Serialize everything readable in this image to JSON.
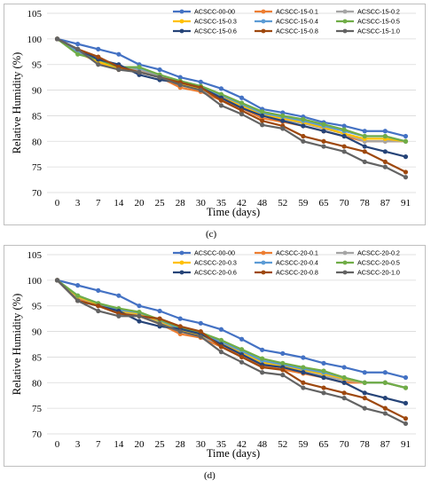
{
  "panels": [
    {
      "label": "(c)",
      "chart_data": {
        "type": "line",
        "title": "",
        "xlabel": "Time (days)",
        "ylabel": "Relative Humidity (%)",
        "categories": [
          "0",
          "3",
          "7",
          "14",
          "20",
          "25",
          "28",
          "30",
          "35",
          "42",
          "48",
          "52",
          "59",
          "65",
          "70",
          "78",
          "87",
          "91"
        ],
        "ylim": [
          70,
          105
        ],
        "yticks": [
          70,
          75,
          80,
          85,
          90,
          95,
          100,
          105
        ],
        "grid": true,
        "legend": "top-right",
        "series": [
          {
            "name": "ACSCC-00-00",
            "color": "#4472c4",
            "values": [
              100,
              99,
              98,
              97,
              95,
              94,
              92.5,
              91.6,
              90.3,
              88.5,
              86.3,
              85.6,
              84.8,
              83.7,
              83,
              82,
              82,
              81
            ]
          },
          {
            "name": "ACSCC-15-0.1",
            "color": "#ed7d31",
            "values": [
              100,
              97.5,
              95.5,
              94,
              94,
              92.5,
              90.5,
              89.7,
              88,
              86.5,
              84.5,
              83.8,
              83,
              82,
              81,
              80,
              80,
              80
            ]
          },
          {
            "name": "ACSCC-15-0.2",
            "color": "#a5a5a5",
            "values": [
              100,
              97.5,
              95.8,
              94.2,
              94,
              92.8,
              91,
              90,
              88.5,
              86.8,
              85,
              84.3,
              83.5,
              82.5,
              81.5,
              80,
              80,
              80
            ]
          },
          {
            "name": "ACSCC-15-0.3",
            "color": "#ffc000",
            "values": [
              100,
              97.3,
              95.5,
              94.3,
              94.3,
              93,
              91.3,
              90.3,
              88.8,
              87,
              85.2,
              84.5,
              83.7,
              82.7,
              81.5,
              80.5,
              80.5,
              80
            ]
          },
          {
            "name": "ACSCC-15-0.4",
            "color": "#5b9bd5",
            "values": [
              100,
              97.5,
              96,
              94.5,
              94.3,
              93,
              91.5,
              90.5,
              89,
              87.3,
              85.5,
              84.8,
              84,
              83,
              82,
              81,
              81,
              80
            ]
          },
          {
            "name": "ACSCC-15-0.5",
            "color": "#70ad47",
            "values": [
              100,
              97,
              96,
              94.5,
              94.5,
              93,
              91.8,
              90.8,
              89.2,
              87.5,
              85.8,
              85,
              84.3,
              83.3,
              82.3,
              81,
              81,
              80
            ]
          },
          {
            "name": "ACSCC-15-0.6",
            "color": "#264478",
            "values": [
              100,
              98,
              96,
              95,
              93,
              92,
              91.5,
              90.5,
              88.5,
              86.5,
              85,
              84,
              83,
              82,
              81,
              79,
              78,
              77
            ]
          },
          {
            "name": "ACSCC-15-0.8",
            "color": "#9e480e",
            "values": [
              100,
              98,
              96.5,
              94.5,
              93.5,
              92.5,
              91.5,
              90.5,
              88,
              86,
              84,
              83,
              81,
              80,
              79,
              78,
              76,
              74
            ]
          },
          {
            "name": "ACSCC-15-1.0",
            "color": "#636363",
            "values": [
              100,
              98,
              95,
              94,
              93.5,
              92.5,
              91,
              90,
              87,
              85.3,
              83.2,
              82.5,
              80,
              79,
              78,
              76,
              75,
              73
            ]
          }
        ]
      }
    },
    {
      "label": "(d)",
      "chart_data": {
        "type": "line",
        "title": "",
        "xlabel": "Time (days)",
        "ylabel": "Relative Humidity (%)",
        "categories": [
          "0",
          "3",
          "7",
          "14",
          "20",
          "25",
          "28",
          "30",
          "35",
          "42",
          "48",
          "52",
          "59",
          "65",
          "70",
          "78",
          "87",
          "91"
        ],
        "ylim": [
          70,
          105
        ],
        "yticks": [
          70,
          75,
          80,
          85,
          90,
          95,
          100,
          105
        ],
        "grid": true,
        "legend": "top-right",
        "series": [
          {
            "name": "ACSCC-00-00",
            "color": "#4472c4",
            "values": [
              100,
              99,
              98,
              97,
              95,
              94,
              92.5,
              91.6,
              90.4,
              88.5,
              86.4,
              85.7,
              84.9,
              83.8,
              83,
              82,
              82,
              81
            ]
          },
          {
            "name": "ACSCC-20-0.1",
            "color": "#ed7d31",
            "values": [
              100,
              96.5,
              95,
              93.5,
              93,
              91.5,
              89.5,
              88.8,
              87,
              85.3,
              83.2,
              82.6,
              81.8,
              81,
              80,
              80,
              80,
              79
            ]
          },
          {
            "name": "ACSCC-20-0.2",
            "color": "#a5a5a5",
            "values": [
              100,
              96.7,
              95.2,
              93.8,
              93.3,
              91.8,
              90,
              89,
              87.5,
              85.7,
              83.7,
              83,
              82.2,
              81.3,
              80.5,
              80,
              80,
              79
            ]
          },
          {
            "name": "ACSCC-20-0.3",
            "color": "#ffc000",
            "values": [
              100,
              96.8,
              95.3,
              94,
              93.5,
              92,
              90.3,
              89.3,
              87.8,
              86,
              84,
              83.3,
              82.5,
              81.7,
              80.8,
              80,
              80,
              79
            ]
          },
          {
            "name": "ACSCC-20-0.4",
            "color": "#5b9bd5",
            "values": [
              100,
              97,
              95.5,
              94.2,
              93.7,
              92.2,
              90.5,
              89.5,
              88,
              86.2,
              84.3,
              83.5,
              82.7,
              82,
              81,
              80,
              80,
              79
            ]
          },
          {
            "name": "ACSCC-20-0.5",
            "color": "#70ad47",
            "values": [
              100,
              97,
              95.5,
              94.5,
              93.8,
              92.3,
              90.8,
              89.8,
              88.3,
              86.5,
              84.7,
              83.8,
              83,
              82.3,
              81,
              80,
              80,
              79
            ]
          },
          {
            "name": "ACSCC-20-0.6",
            "color": "#264478",
            "values": [
              100,
              96,
              95,
              94,
              92,
              91,
              90.5,
              89.5,
              87.5,
              85.5,
              83.5,
              83,
              82,
              81,
              80,
              78,
              77,
              76
            ]
          },
          {
            "name": "ACSCC-20-0.8",
            "color": "#9e480e",
            "values": [
              100,
              96,
              95,
              93.5,
              93,
              92.5,
              91,
              90,
              87,
              85,
              83,
              82.5,
              80,
              79,
              78,
              77,
              75,
              73
            ]
          },
          {
            "name": "ACSCC-20-1.0",
            "color": "#636363",
            "values": [
              100,
              96,
              94,
              93,
              93,
              91.5,
              90,
              89,
              86,
              84,
              82,
              81.5,
              79,
              78,
              77,
              75,
              74,
              72
            ]
          }
        ]
      }
    }
  ]
}
